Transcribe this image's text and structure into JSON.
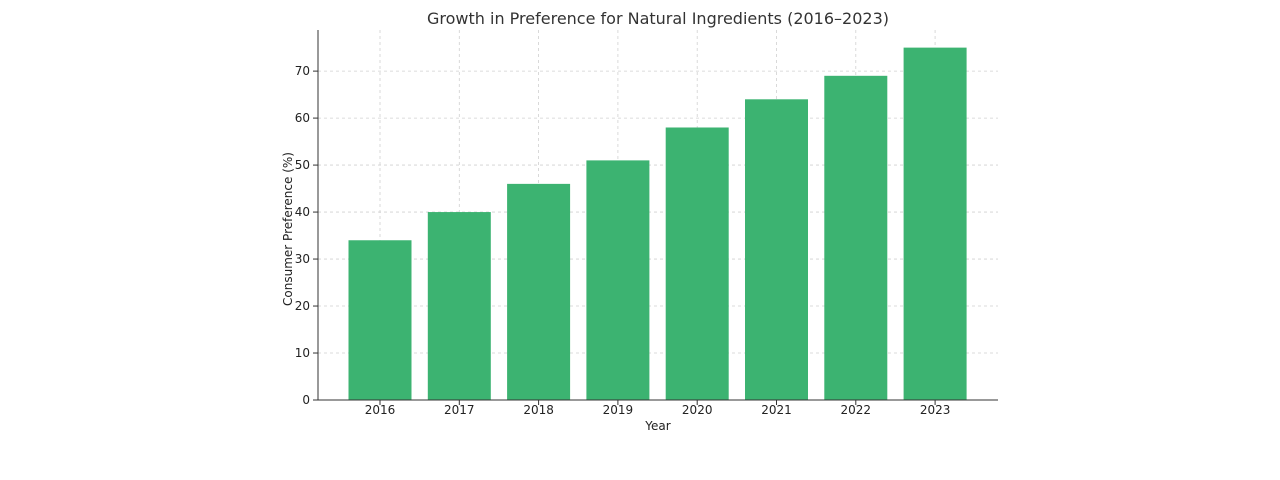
{
  "chart_data": {
    "type": "bar",
    "title": "Growth in Preference for Natural Ingredients (2016–2023)",
    "xlabel": "Year",
    "ylabel": "Consumer Preference (%)",
    "categories": [
      "2016",
      "2017",
      "2018",
      "2019",
      "2020",
      "2021",
      "2022",
      "2023"
    ],
    "values": [
      34,
      40,
      46,
      51,
      58,
      64,
      69,
      75
    ],
    "ylim": [
      0,
      78.75
    ],
    "yticks": [
      0,
      10,
      20,
      30,
      40,
      50,
      60,
      70
    ],
    "grid": true,
    "bar_color": "#3cb371"
  }
}
